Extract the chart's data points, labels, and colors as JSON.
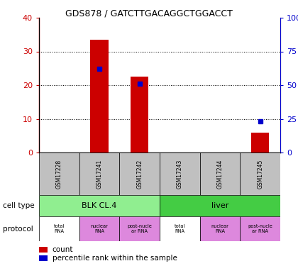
{
  "title": "GDS878 / GATCTTGACAGGCTGGACCT",
  "samples": [
    "GSM17228",
    "GSM17241",
    "GSM17242",
    "GSM17243",
    "GSM17244",
    "GSM17245"
  ],
  "counts": [
    0,
    33.5,
    22.5,
    0.2,
    0,
    6
  ],
  "percentiles": [
    null,
    62,
    51,
    null,
    null,
    23
  ],
  "ylim_left": [
    0,
    40
  ],
  "ylim_right": [
    0,
    100
  ],
  "yticks_left": [
    0,
    10,
    20,
    30,
    40
  ],
  "yticks_right": [
    0,
    25,
    50,
    75,
    100
  ],
  "ytick_labels_right": [
    "0",
    "25",
    "50",
    "75",
    "100%"
  ],
  "bar_color": "#CC0000",
  "percentile_color": "#0000CC",
  "tick_color_left": "#CC0000",
  "tick_color_right": "#0000CC",
  "sample_bg_color": "#C0C0C0",
  "cell_type_colors": [
    "#90EE90",
    "#44CC44"
  ],
  "protocol_color": "#DD88DD",
  "protocol_labels": [
    "total\nRNA",
    "nuclear\nRNA",
    "post-nucle\nar RNA",
    "total\nRNA",
    "nuclear\nRNA",
    "post-nucle\nar RNA"
  ],
  "cell_type_labels": [
    "BLK CL.4",
    "liver"
  ],
  "legend_count": "count",
  "legend_pct": "percentile rank within the sample",
  "label_celltype": "cell type",
  "label_protocol": "protocol"
}
